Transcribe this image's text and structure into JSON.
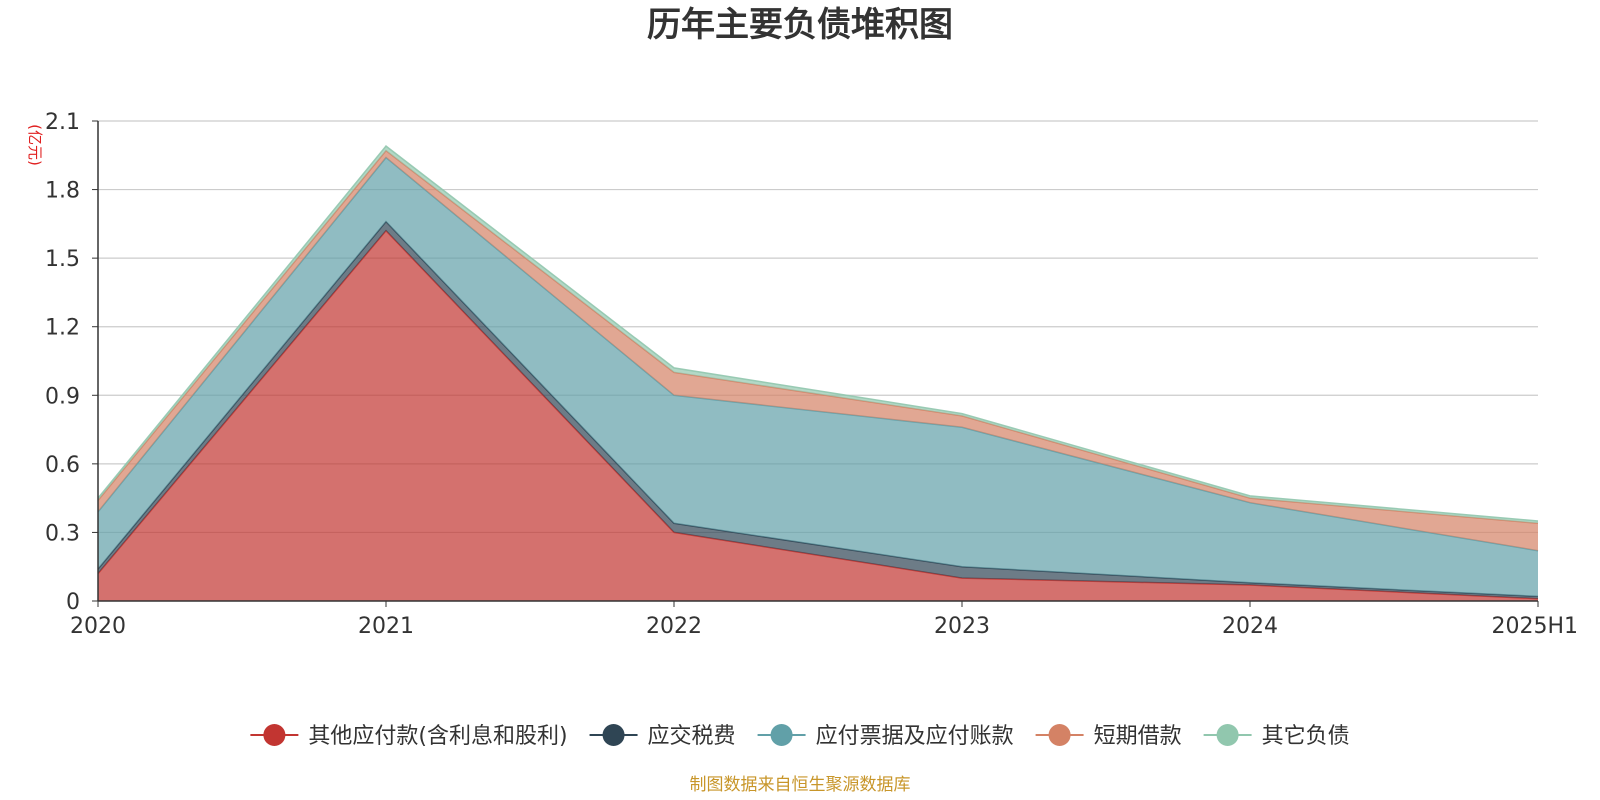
{
  "chart_data": {
    "type": "area",
    "stacked": true,
    "title": "历年主要负债堆积图",
    "unit_label": "(亿元)",
    "source": "制图数据来自恒生聚源数据库",
    "categories": [
      "2020",
      "2021",
      "2022",
      "2023",
      "2024",
      "2025H1"
    ],
    "ylim": [
      0,
      2.1
    ],
    "yticks": [
      "0",
      "0.3",
      "0.6",
      "0.9",
      "1.2",
      "1.5",
      "1.8",
      "2.1"
    ],
    "ytick_values": [
      0,
      0.3,
      0.6,
      0.9,
      1.2,
      1.5,
      1.8,
      2.1
    ],
    "legend_position": "bottom",
    "grid": true,
    "series": [
      {
        "name": "其他应付款(含利息和股利)",
        "color": "#c23531",
        "values": [
          0.12,
          1.62,
          0.3,
          0.1,
          0.07,
          0.01
        ]
      },
      {
        "name": "应交税费",
        "color": "#2f4554",
        "values": [
          0.02,
          0.04,
          0.04,
          0.05,
          0.01,
          0.01
        ]
      },
      {
        "name": "应付票据及应付账款",
        "color": "#61a0a8",
        "values": [
          0.25,
          0.28,
          0.56,
          0.61,
          0.35,
          0.2
        ]
      },
      {
        "name": "短期借款",
        "color": "#d48265",
        "values": [
          0.05,
          0.03,
          0.1,
          0.05,
          0.02,
          0.12
        ]
      },
      {
        "name": "其它负债",
        "color": "#91c7ae",
        "values": [
          0.01,
          0.02,
          0.02,
          0.01,
          0.01,
          0.01
        ]
      }
    ]
  }
}
